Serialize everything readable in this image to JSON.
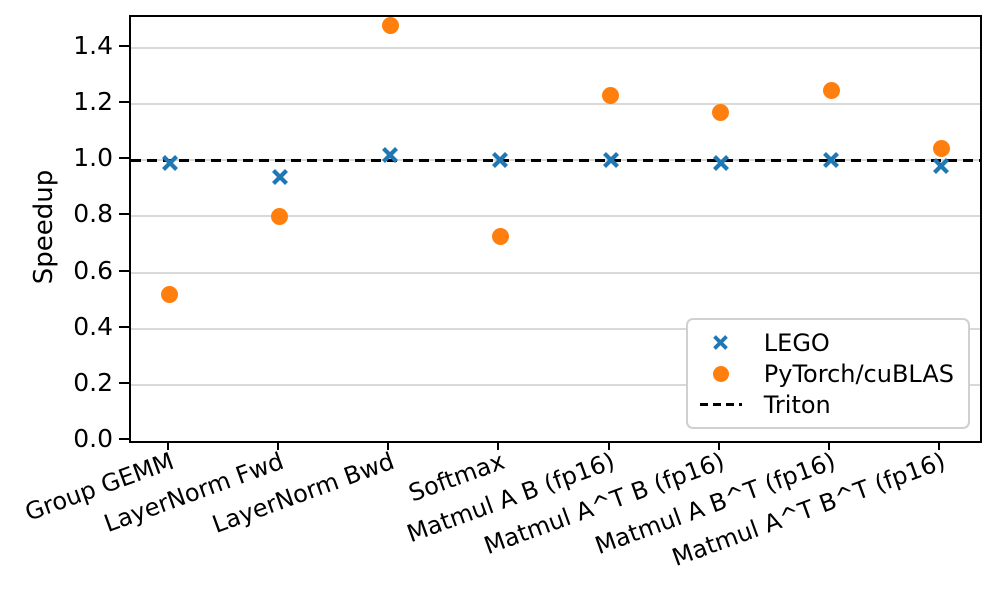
{
  "chart_data": {
    "type": "scatter",
    "title": "",
    "xlabel": "",
    "ylabel": "Speedup",
    "ylim": [
      0.0,
      1.51
    ],
    "yticks": [
      0.0,
      0.2,
      0.4,
      0.6,
      0.8,
      1.0,
      1.2,
      1.4
    ],
    "grid": "horizontal",
    "grid_color": "#d9d9d9",
    "legend_position": "lower right",
    "categories": [
      "Group GEMM",
      "LayerNorm Fwd",
      "LayerNorm Bwd",
      "Softmax",
      "Matmul A B (fp16)",
      "Matmul A^T B (fp16)",
      "Matmul A B^T (fp16)",
      "Matmul A^T B^T (fp16)"
    ],
    "series": [
      {
        "name": "LEGO",
        "marker": "x",
        "color": "#1f77b4",
        "values": [
          0.99,
          0.94,
          1.02,
          1.0,
          1.0,
          0.99,
          1.0,
          0.98
        ]
      },
      {
        "name": "PyTorch/cuBLAS",
        "marker": "circle",
        "color": "#ff7f0e",
        "values": [
          0.52,
          0.8,
          1.48,
          0.73,
          1.23,
          1.17,
          1.25,
          1.04
        ]
      }
    ],
    "reference_line": {
      "name": "Triton",
      "value": 1.0,
      "style": "dashed",
      "color": "#000000"
    }
  }
}
